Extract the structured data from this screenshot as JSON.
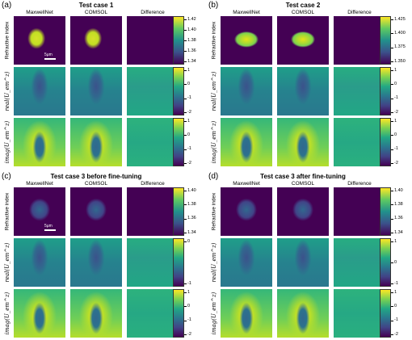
{
  "panels": [
    {
      "id": "a",
      "letter": "(a)",
      "title": "Test case 1",
      "columns": [
        "MaxwellNet",
        "COMSOL",
        "Difference"
      ],
      "rows": [
        "Refractive index",
        "real(U_em^z)",
        "imag(U_em^z)"
      ],
      "colorbars": [
        [
          "1.42",
          "1.40",
          "1.38",
          "1.36",
          "1.34"
        ],
        [
          "1",
          "0",
          "-1",
          "-2"
        ],
        [
          "1",
          "0",
          "-1",
          "-2"
        ]
      ],
      "scalebar": "5μm",
      "shape": "oval"
    },
    {
      "id": "b",
      "letter": "(b)",
      "title": "Test case 2",
      "columns": [
        "MaxwellNet",
        "COMSOL",
        "Difference"
      ],
      "rows": [
        "Refractive index",
        "real(U_em^z)",
        "imag(U_em^z)"
      ],
      "colorbars": [
        [
          "1.425",
          "1.400",
          "1.375",
          "1.350"
        ],
        [
          "1",
          "0",
          "-1",
          "-2"
        ],
        [
          "1",
          "0",
          "-1",
          "-2"
        ]
      ],
      "scalebar": "",
      "shape": "ellipse"
    },
    {
      "id": "c",
      "letter": "(c)",
      "title": "Test case 3 before fine-tuning",
      "columns": [
        "MaxwellNet",
        "COMSOL",
        "Difference"
      ],
      "rows": [
        "Refractive index",
        "real(U_em^z)",
        "imag(U_em^z)"
      ],
      "colorbars": [
        [
          "1.40",
          "1.38",
          "1.36",
          "1.34"
        ],
        [
          "0",
          "-1"
        ],
        [
          "1",
          "0",
          "-1",
          "-2"
        ]
      ],
      "scalebar": "5μm",
      "shape": "cell"
    },
    {
      "id": "d",
      "letter": "(d)",
      "title": "Test case 3 after fine-tuning",
      "columns": [
        "MaxwellNet",
        "COMSOL",
        "Difference"
      ],
      "rows": [
        "Refractive index",
        "real(U_em^z)",
        "imag(U_em^z)"
      ],
      "colorbars": [
        [
          "1.40",
          "1.38",
          "1.36",
          "1.34"
        ],
        [
          "1",
          "0",
          "-1"
        ],
        [
          "1",
          "0",
          "-1",
          "-2"
        ]
      ],
      "scalebar": "",
      "shape": "cell"
    }
  ],
  "colors": {
    "background": "#440154",
    "mid": "#21918c",
    "bright": "#fde725",
    "dark": "#3b528b"
  }
}
